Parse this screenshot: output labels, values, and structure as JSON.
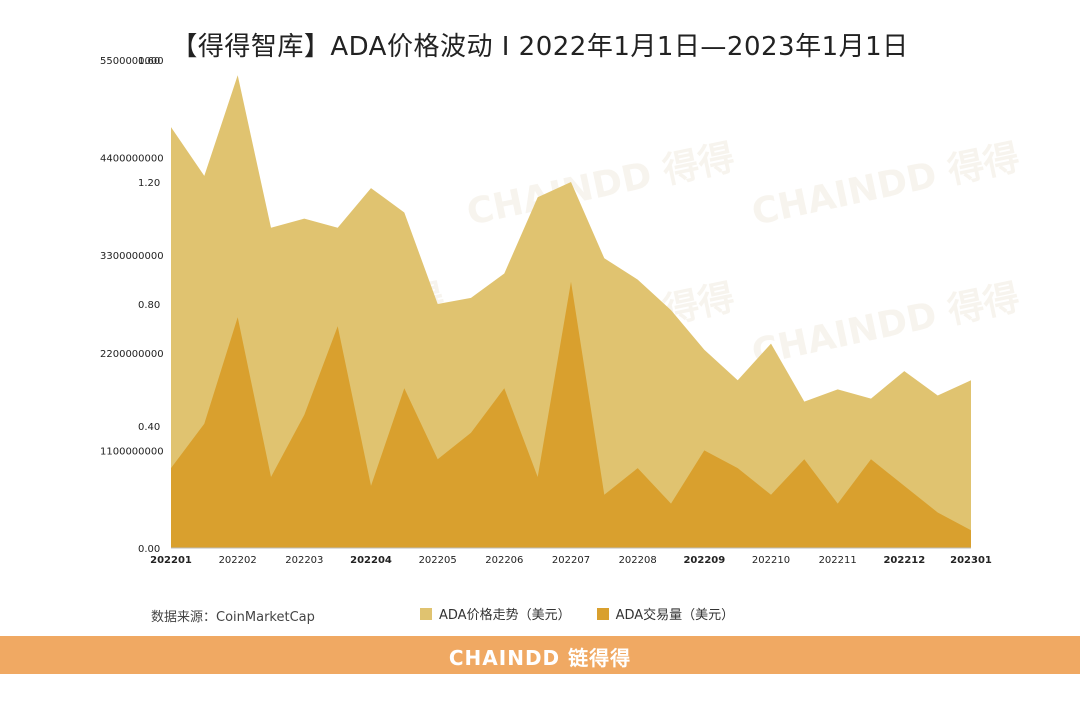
{
  "title": "【得得智库】ADA价格波动 I 2022年1月1日—2023年1月1日",
  "source": "数据来源：CoinMarketCap",
  "brand": "CHAINDD 链得得",
  "watermark": "CHAINDD 得得",
  "colors": {
    "price": "#e0c370",
    "volume": "#d9a02e",
    "footer": "#f0a963"
  },
  "chart_data": {
    "type": "area",
    "legend": [
      {
        "name": "ADA价格走势（美元）",
        "color": "#e0c370"
      },
      {
        "name": "ADA交易量（美元）",
        "color": "#d9a02e"
      }
    ],
    "legend_position": "bottom",
    "grid": false,
    "y_price": {
      "range": [
        0,
        1.6
      ],
      "ticks": [
        "0.00",
        "0.40",
        "0.80",
        "1.20",
        "1.60"
      ]
    },
    "y_volume": {
      "range": [
        0,
        5500000000
      ],
      "ticks": [
        "1100000000",
        "2200000000",
        "3300000000",
        "4400000000",
        "5500000000"
      ]
    },
    "x_ticks": [
      {
        "label": "202201",
        "bold": true
      },
      {
        "label": "202202",
        "bold": false
      },
      {
        "label": "202203",
        "bold": false
      },
      {
        "label": "202204",
        "bold": true
      },
      {
        "label": "202205",
        "bold": false
      },
      {
        "label": "202206",
        "bold": false
      },
      {
        "label": "202207",
        "bold": false
      },
      {
        "label": "202208",
        "bold": false
      },
      {
        "label": "202209",
        "bold": true
      },
      {
        "label": "202210",
        "bold": false
      },
      {
        "label": "202211",
        "bold": false
      },
      {
        "label": "202212",
        "bold": true
      },
      {
        "label": "202301",
        "bold": true
      }
    ],
    "series": [
      {
        "name": "ADA价格走势（美元）",
        "x": [
          0,
          0.5,
          1,
          1.5,
          2,
          2.5,
          3,
          3.5,
          4,
          4.5,
          5,
          5.5,
          6,
          6.5,
          7,
          7.5,
          8,
          8.5,
          9,
          9.5,
          10,
          10.5,
          11,
          11.5,
          12
        ],
        "values": [
          1.38,
          1.22,
          1.55,
          1.05,
          1.08,
          1.05,
          1.18,
          1.1,
          0.8,
          0.82,
          0.9,
          1.15,
          1.2,
          0.95,
          0.88,
          0.78,
          0.65,
          0.55,
          0.67,
          0.48,
          0.52,
          0.49,
          0.58,
          0.5,
          0.55
        ]
      },
      {
        "name": "ADA交易量（美元）",
        "x": [
          0,
          0.5,
          1,
          1.5,
          2,
          2.5,
          3,
          3.5,
          4,
          4.5,
          5,
          5.5,
          6,
          6.5,
          7,
          7.5,
          8,
          8.5,
          9,
          9.5,
          10,
          10.5,
          11,
          11.5,
          12
        ],
        "values": [
          900000000,
          1400000000,
          2600000000,
          800000000,
          1500000000,
          2500000000,
          700000000,
          1800000000,
          1000000000,
          1300000000,
          1800000000,
          800000000,
          3000000000,
          600000000,
          900000000,
          500000000,
          1100000000,
          900000000,
          600000000,
          1000000000,
          500000000,
          1000000000,
          700000000,
          400000000,
          200000000
        ]
      }
    ]
  }
}
